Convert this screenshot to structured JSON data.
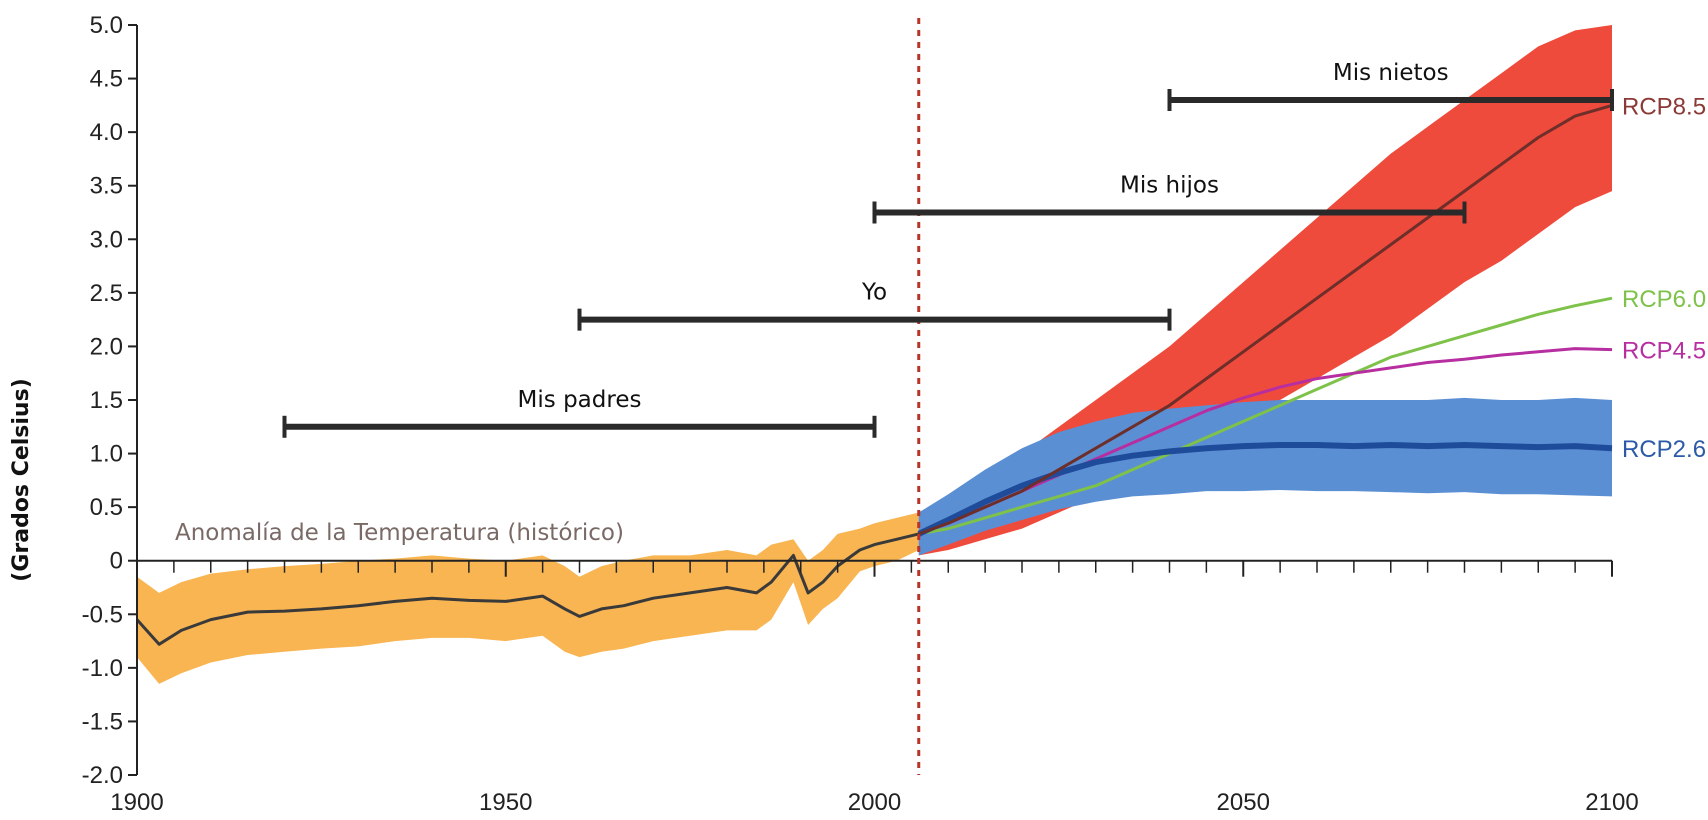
{
  "chart_data": {
    "type": "line",
    "ylabel": "(Grados Celsius)",
    "xlabel": "",
    "xlim": [
      1900,
      2100
    ],
    "ylim": [
      -2.0,
      5.0
    ],
    "x_ticks": [
      "1900",
      "1950",
      "2000",
      "2050",
      "2100"
    ],
    "y_ticks": [
      "5.0",
      "4.5",
      "4.0",
      "3.5",
      "3.0",
      "2.5",
      "2.0",
      "1.5",
      "1.0",
      "0.5",
      "0",
      "-0.5",
      "-1.0",
      "-1.5",
      "-2.0"
    ],
    "grid": false,
    "divider_year": 2006,
    "historical": {
      "label": "Anomalía de la Temperatura (histórico)",
      "color": "#3a3a3a",
      "band_color": "#f8b552",
      "x": [
        1900,
        1903,
        1906,
        1910,
        1915,
        1920,
        1925,
        1930,
        1935,
        1940,
        1945,
        1950,
        1955,
        1958,
        1960,
        1963,
        1966,
        1970,
        1975,
        1980,
        1984,
        1986,
        1989,
        1991,
        1993,
        1995,
        1998,
        2000,
        2003,
        2006
      ],
      "values": [
        -0.55,
        -0.78,
        -0.65,
        -0.55,
        -0.48,
        -0.47,
        -0.45,
        -0.42,
        -0.38,
        -0.35,
        -0.37,
        -0.38,
        -0.33,
        -0.45,
        -0.52,
        -0.45,
        -0.42,
        -0.35,
        -0.3,
        -0.25,
        -0.3,
        -0.2,
        0.05,
        -0.3,
        -0.2,
        -0.05,
        0.1,
        0.15,
        0.2,
        0.25
      ],
      "upper": [
        -0.15,
        -0.3,
        -0.2,
        -0.12,
        -0.08,
        -0.05,
        -0.03,
        0.0,
        0.02,
        0.05,
        0.02,
        0.0,
        0.05,
        -0.05,
        -0.15,
        -0.05,
        0.0,
        0.05,
        0.05,
        0.1,
        0.05,
        0.15,
        0.2,
        0.0,
        0.1,
        0.25,
        0.3,
        0.35,
        0.4,
        0.45
      ],
      "lower": [
        -0.9,
        -1.15,
        -1.05,
        -0.95,
        -0.88,
        -0.85,
        -0.82,
        -0.8,
        -0.75,
        -0.72,
        -0.72,
        -0.75,
        -0.7,
        -0.85,
        -0.9,
        -0.85,
        -0.82,
        -0.75,
        -0.7,
        -0.65,
        -0.65,
        -0.55,
        -0.2,
        -0.6,
        -0.45,
        -0.35,
        -0.1,
        -0.05,
        0.0,
        0.1
      ]
    },
    "series": [
      {
        "name": "RCP8.5",
        "color": "#8a3a36",
        "line_color": "#6e2e2a",
        "band_color": "#ef4b3c",
        "x": [
          2006,
          2010,
          2015,
          2020,
          2025,
          2030,
          2035,
          2040,
          2045,
          2050,
          2055,
          2060,
          2065,
          2070,
          2075,
          2080,
          2085,
          2090,
          2095,
          2100
        ],
        "values": [
          0.25,
          0.35,
          0.5,
          0.65,
          0.85,
          1.05,
          1.25,
          1.45,
          1.7,
          1.95,
          2.2,
          2.45,
          2.7,
          2.95,
          3.2,
          3.45,
          3.7,
          3.95,
          4.15,
          4.25
        ],
        "upper": [
          0.45,
          0.6,
          0.8,
          1.0,
          1.25,
          1.5,
          1.75,
          2.0,
          2.3,
          2.6,
          2.9,
          3.2,
          3.5,
          3.8,
          4.05,
          4.3,
          4.55,
          4.8,
          4.95,
          5.0
        ],
        "lower": [
          0.05,
          0.1,
          0.2,
          0.3,
          0.45,
          0.6,
          0.75,
          0.9,
          1.1,
          1.3,
          1.5,
          1.7,
          1.9,
          2.1,
          2.35,
          2.6,
          2.8,
          3.05,
          3.3,
          3.45
        ]
      },
      {
        "name": "RCP6.0",
        "color": "#7ec24a",
        "x": [
          2006,
          2010,
          2015,
          2020,
          2025,
          2030,
          2035,
          2040,
          2045,
          2050,
          2055,
          2060,
          2065,
          2070,
          2075,
          2080,
          2085,
          2090,
          2095,
          2100
        ],
        "values": [
          0.25,
          0.3,
          0.4,
          0.5,
          0.6,
          0.7,
          0.85,
          1.0,
          1.15,
          1.3,
          1.45,
          1.6,
          1.75,
          1.9,
          2.0,
          2.1,
          2.2,
          2.3,
          2.38,
          2.45
        ]
      },
      {
        "name": "RCP4.5",
        "color": "#b62ea0",
        "x": [
          2006,
          2010,
          2015,
          2020,
          2025,
          2030,
          2035,
          2040,
          2045,
          2050,
          2055,
          2060,
          2065,
          2070,
          2075,
          2080,
          2085,
          2090,
          2095,
          2100
        ],
        "values": [
          0.25,
          0.35,
          0.5,
          0.65,
          0.8,
          0.95,
          1.1,
          1.25,
          1.4,
          1.52,
          1.62,
          1.7,
          1.75,
          1.8,
          1.85,
          1.88,
          1.92,
          1.95,
          1.98,
          1.97
        ]
      },
      {
        "name": "RCP2.6",
        "color": "#2a5aa8",
        "line_color": "#1f4c9a",
        "band_color": "#5b8fd4",
        "x": [
          2006,
          2010,
          2015,
          2020,
          2025,
          2030,
          2035,
          2040,
          2045,
          2050,
          2055,
          2060,
          2065,
          2070,
          2075,
          2080,
          2085,
          2090,
          2095,
          2100
        ],
        "values": [
          0.25,
          0.38,
          0.55,
          0.7,
          0.82,
          0.92,
          0.98,
          1.02,
          1.05,
          1.07,
          1.08,
          1.08,
          1.07,
          1.08,
          1.07,
          1.08,
          1.07,
          1.06,
          1.07,
          1.05
        ],
        "upper": [
          0.45,
          0.62,
          0.85,
          1.05,
          1.2,
          1.3,
          1.38,
          1.42,
          1.45,
          1.48,
          1.5,
          1.5,
          1.5,
          1.5,
          1.5,
          1.52,
          1.5,
          1.5,
          1.52,
          1.5
        ],
        "lower": [
          0.05,
          0.15,
          0.28,
          0.38,
          0.48,
          0.55,
          0.6,
          0.62,
          0.65,
          0.65,
          0.66,
          0.65,
          0.65,
          0.64,
          0.63,
          0.64,
          0.62,
          0.62,
          0.61,
          0.6
        ]
      }
    ],
    "lifespans": [
      {
        "label": "Mis padres",
        "start": 1920,
        "end": 2000,
        "y": 1.25
      },
      {
        "label": "Yo",
        "start": 1960,
        "end": 2040,
        "y": 2.25
      },
      {
        "label": "Mis hijos",
        "start": 2000,
        "end": 2080,
        "y": 3.25
      },
      {
        "label": "Mis nietos",
        "start": 2040,
        "end": 2100,
        "y": 4.3
      }
    ]
  }
}
